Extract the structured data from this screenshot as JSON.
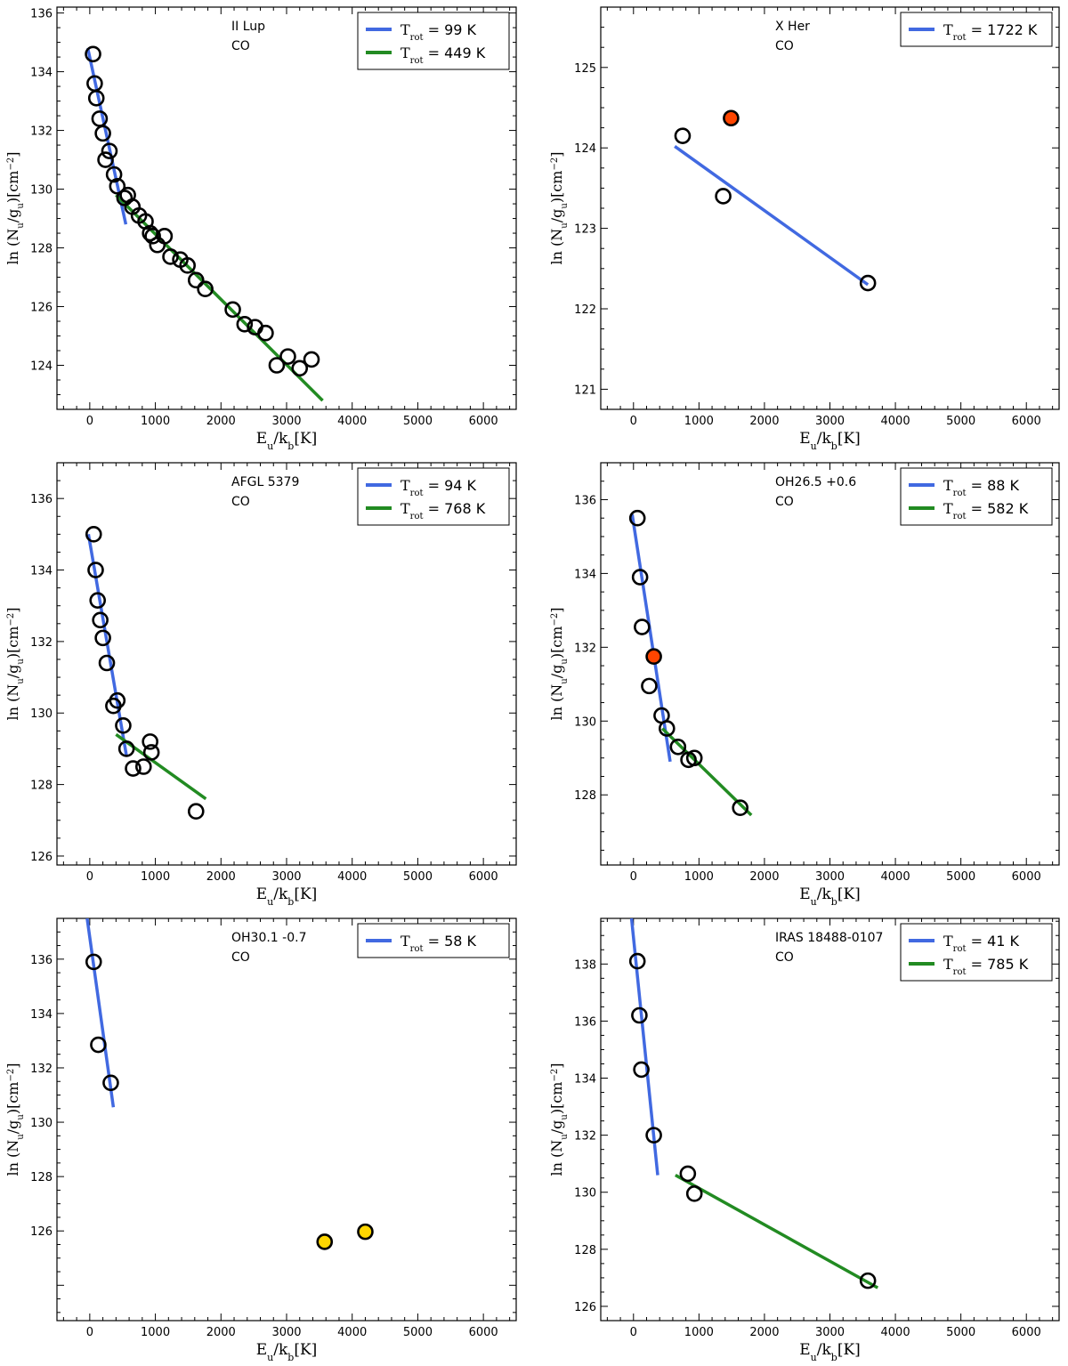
{
  "figure": {
    "xlabel_main": "E",
    "xlabel_sub": "u",
    "xlabel_div": "/k",
    "xlabel_sub2": "b",
    "xlabel_unit": "[K]",
    "ylabel": "ln (N",
    "ylabel_sub": "u",
    "ylabel_mid": "/g",
    "ylabel_sub2": "u",
    "ylabel_close": ")",
    "ylabel_unit": "[cm",
    "ylabel_exp": "−2",
    "ylabel_end": "]",
    "legend_T": "T",
    "legend_sub": "rot",
    "legend_eq": " = "
  },
  "colors": {
    "blue": "#4169e1",
    "green": "#228b22",
    "red": "#ff4500",
    "yellow": "#ffd700"
  },
  "chart_data": [
    {
      "type": "scatter",
      "name": "panel-ii-lup",
      "title": "II Lup",
      "molecule": "CO",
      "xlim": [
        -500,
        6500
      ],
      "xticks": [
        0,
        1000,
        2000,
        3000,
        4000,
        5000,
        6000
      ],
      "ylim": [
        122.5,
        136.2
      ],
      "yticks": [
        124,
        126,
        128,
        130,
        132,
        134,
        136
      ],
      "points": [
        [
          50,
          134.6
        ],
        [
          75,
          133.6
        ],
        [
          100,
          133.1
        ],
        [
          150,
          132.4
        ],
        [
          200,
          131.9
        ],
        [
          240,
          131.0
        ],
        [
          300,
          131.3
        ],
        [
          370,
          130.5
        ],
        [
          420,
          130.1
        ],
        [
          530,
          129.7
        ],
        [
          580,
          129.8
        ],
        [
          650,
          129.4
        ],
        [
          750,
          129.1
        ],
        [
          850,
          128.9
        ],
        [
          920,
          128.5
        ],
        [
          960,
          128.4
        ],
        [
          1030,
          128.1
        ],
        [
          1140,
          128.4
        ],
        [
          1230,
          127.7
        ],
        [
          1380,
          127.6
        ],
        [
          1490,
          127.4
        ],
        [
          1620,
          126.9
        ],
        [
          1760,
          126.6
        ],
        [
          2180,
          125.9
        ],
        [
          2360,
          125.4
        ],
        [
          2520,
          125.3
        ],
        [
          2680,
          125.1
        ],
        [
          2850,
          124.0
        ],
        [
          3020,
          124.3
        ],
        [
          3200,
          123.9
        ],
        [
          3380,
          124.2
        ]
      ],
      "highlight": [],
      "fits": [
        {
          "label": "99 K",
          "color": "#4169e1",
          "x": [
            -30,
            550
          ],
          "y": [
            134.8,
            128.8
          ]
        },
        {
          "label": "449 K",
          "color": "#228b22",
          "x": [
            400,
            3550
          ],
          "y": [
            129.8,
            122.8
          ]
        }
      ]
    },
    {
      "type": "scatter",
      "name": "panel-x-her",
      "title": "X Her",
      "molecule": "CO",
      "xlim": [
        -500,
        6500
      ],
      "xticks": [
        0,
        1000,
        2000,
        3000,
        4000,
        5000,
        6000
      ],
      "ylim": [
        120.75,
        125.75
      ],
      "yticks": [
        121,
        122,
        123,
        124,
        125
      ],
      "points": [
        [
          750,
          124.15
        ],
        [
          1370,
          123.4
        ],
        [
          3580,
          122.32
        ]
      ],
      "highlight": [
        {
          "x": 1490,
          "y": 124.37,
          "color": "#ff4500"
        }
      ],
      "fits": [
        {
          "label": "1722 K",
          "color": "#4169e1",
          "x": [
            630,
            3580
          ],
          "y": [
            124.02,
            122.3
          ]
        }
      ]
    },
    {
      "type": "scatter",
      "name": "panel-afgl-5379",
      "title": "AFGL 5379",
      "molecule": "CO",
      "xlim": [
        -500,
        6500
      ],
      "xticks": [
        0,
        1000,
        2000,
        3000,
        4000,
        5000,
        6000
      ],
      "ylim": [
        125.75,
        137.0
      ],
      "yticks": [
        126,
        128,
        130,
        132,
        134,
        136
      ],
      "points": [
        [
          60,
          135.0
        ],
        [
          90,
          134.0
        ],
        [
          120,
          133.15
        ],
        [
          160,
          132.6
        ],
        [
          200,
          132.1
        ],
        [
          260,
          131.4
        ],
        [
          360,
          130.2
        ],
        [
          420,
          130.35
        ],
        [
          510,
          129.65
        ],
        [
          560,
          129.0
        ],
        [
          660,
          128.45
        ],
        [
          820,
          128.5
        ],
        [
          920,
          129.2
        ],
        [
          940,
          128.9
        ],
        [
          1620,
          127.25
        ]
      ],
      "highlight": [],
      "fits": [
        {
          "label": "94 K",
          "color": "#4169e1",
          "x": [
            -20,
            560
          ],
          "y": [
            135.0,
            128.8
          ]
        },
        {
          "label": "768 K",
          "color": "#228b22",
          "x": [
            400,
            1770
          ],
          "y": [
            129.4,
            127.6
          ]
        }
      ]
    },
    {
      "type": "scatter",
      "name": "panel-oh26",
      "title": "OH26.5 +0.6",
      "molecule": "CO",
      "xlim": [
        -500,
        6500
      ],
      "xticks": [
        0,
        1000,
        2000,
        3000,
        4000,
        5000,
        6000
      ],
      "ylim": [
        126.1,
        137.0
      ],
      "yticks": [
        128,
        130,
        132,
        134,
        136
      ],
      "points": [
        [
          60,
          135.5
        ],
        [
          100,
          133.9
        ],
        [
          130,
          132.55
        ],
        [
          240,
          130.95
        ],
        [
          430,
          130.15
        ],
        [
          510,
          129.8
        ],
        [
          680,
          129.3
        ],
        [
          840,
          128.95
        ],
        [
          930,
          129.0
        ],
        [
          1630,
          127.65
        ]
      ],
      "highlight": [
        {
          "x": 310,
          "y": 131.75,
          "color": "#ff4500"
        }
      ],
      "fits": [
        {
          "label": "88 K",
          "color": "#4169e1",
          "x": [
            -20,
            560
          ],
          "y": [
            135.6,
            128.9
          ]
        },
        {
          "label": "582 K",
          "color": "#228b22",
          "x": [
            440,
            1800
          ],
          "y": [
            129.8,
            127.45
          ]
        }
      ]
    },
    {
      "type": "scatter",
      "name": "panel-oh30",
      "title": "OH30.1 -0.7",
      "molecule": "CO",
      "xlim": [
        -500,
        6500
      ],
      "xticks": [
        0,
        1000,
        2000,
        3000,
        4000,
        5000,
        6000
      ],
      "ylim": [
        122.7,
        137.5
      ],
      "yticks": [
        126,
        128,
        130,
        132,
        134,
        136
      ],
      "points": [
        [
          60,
          135.9
        ],
        [
          130,
          132.85
        ],
        [
          320,
          131.45
        ]
      ],
      "highlight": [
        {
          "x": 3580,
          "y": 125.6,
          "color": "#ffd700"
        },
        {
          "x": 4200,
          "y": 125.97,
          "color": "#ffd700"
        }
      ],
      "fits": [
        {
          "label": "58 K",
          "color": "#4169e1",
          "x": [
            -40,
            360
          ],
          "y": [
            137.5,
            130.55
          ]
        }
      ]
    },
    {
      "type": "scatter",
      "name": "panel-iras",
      "title": "IRAS 18488-0107",
      "molecule": "CO",
      "xlim": [
        -500,
        6500
      ],
      "xticks": [
        0,
        1000,
        2000,
        3000,
        4000,
        5000,
        6000
      ],
      "ylim": [
        125.5,
        139.6
      ],
      "yticks": [
        126,
        128,
        130,
        132,
        134,
        136,
        138
      ],
      "points": [
        [
          60,
          138.1
        ],
        [
          90,
          136.2
        ],
        [
          120,
          134.3
        ],
        [
          310,
          132.0
        ],
        [
          830,
          130.65
        ],
        [
          930,
          129.95
        ],
        [
          3580,
          126.9
        ]
      ],
      "highlight": [],
      "fits": [
        {
          "label": "41 K",
          "color": "#4169e1",
          "x": [
            -30,
            370
          ],
          "y": [
            139.6,
            130.6
          ]
        },
        {
          "label": "785 K",
          "color": "#228b22",
          "x": [
            640,
            3730
          ],
          "y": [
            130.6,
            126.65
          ]
        }
      ]
    }
  ]
}
